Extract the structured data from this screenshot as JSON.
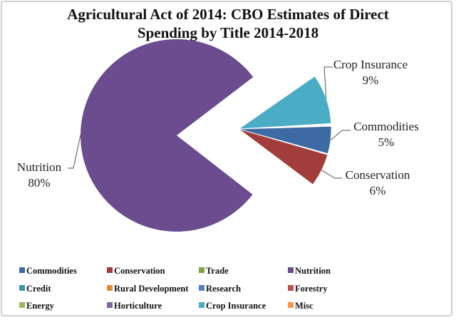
{
  "chart_data": {
    "type": "pie",
    "title": [
      "Agricultural Act of 2014: CBO Estimates of Direct",
      "Spending by Title 2014-2018"
    ],
    "legend_position": "bottom",
    "exploded": "all slices except Nutrition pulled out to the right",
    "slices": [
      {
        "name": "Commodities",
        "value": 5,
        "label": "5%",
        "color": "#3d6aa3"
      },
      {
        "name": "Conservation",
        "value": 6,
        "label": "6%",
        "color": "#a13d3a"
      },
      {
        "name": "Trade",
        "value": 0.2,
        "color": "#7fa344"
      },
      {
        "name": "Nutrition",
        "value": 80,
        "label": "80%",
        "color": "#6a4c8f"
      },
      {
        "name": "Credit",
        "value": 0.1,
        "color": "#3a93a8"
      },
      {
        "name": "Rural Development",
        "value": 0.1,
        "color": "#e08a3a"
      },
      {
        "name": "Research",
        "value": 0.1,
        "color": "#4f81bd"
      },
      {
        "name": "Forestry",
        "value": 0.02,
        "color": "#c0504d"
      },
      {
        "name": "Energy",
        "value": 0.1,
        "color": "#9bbb59"
      },
      {
        "name": "Horticulture",
        "value": 0.2,
        "color": "#8064a2"
      },
      {
        "name": "Crop Insurance",
        "value": 9,
        "label": "9%",
        "color": "#4bacc6"
      },
      {
        "name": "Misc",
        "value": 0.3,
        "color": "#f79646"
      }
    ]
  }
}
